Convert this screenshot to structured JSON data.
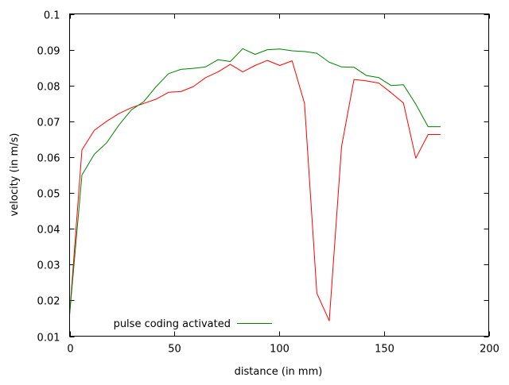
{
  "chart_data": {
    "type": "line",
    "title": "",
    "xlabel": "distance (in mm)",
    "ylabel": "velocity (in m/s)",
    "xlim": [
      0,
      200
    ],
    "ylim": [
      0.01,
      0.1
    ],
    "x_ticks": [
      0,
      50,
      100,
      150,
      200
    ],
    "x_tick_labels": [
      "0",
      "50",
      "100",
      "150",
      "200"
    ],
    "y_ticks": [
      0.01,
      0.02,
      0.03,
      0.04,
      0.05,
      0.06,
      0.07,
      0.08,
      0.09,
      0.1
    ],
    "y_tick_labels": [
      "0.01",
      "0.02",
      "0.03",
      "0.04",
      "0.05",
      "0.06",
      "0.07",
      "0.08",
      "0.09",
      "0.1"
    ],
    "grid": false,
    "legend_position": "bottom-left",
    "series": [
      {
        "name": "pulse coding activated",
        "color": "#008000",
        "x": [
          0,
          5.9,
          11.8,
          17.7,
          23.6,
          29.5,
          35.4,
          41.3,
          47.2,
          53.1,
          59.0,
          64.9,
          70.8,
          76.7,
          82.6,
          88.5,
          94.4,
          100.3,
          106.2,
          112.1,
          118.0,
          123.9,
          129.8,
          135.7,
          141.6,
          147.5,
          153.4,
          159.3,
          165.2,
          171.1,
          177.0
        ],
        "y": [
          0.016,
          0.055,
          0.0608,
          0.064,
          0.069,
          0.0732,
          0.0755,
          0.0797,
          0.0833,
          0.0845,
          0.0848,
          0.0852,
          0.0872,
          0.0867,
          0.0903,
          0.0887,
          0.09,
          0.0902,
          0.0897,
          0.0895,
          0.089,
          0.0865,
          0.0852,
          0.0851,
          0.0828,
          0.0822,
          0.08,
          0.0802,
          0.0748,
          0.0685,
          0.0685
        ]
      },
      {
        "color": "#ff0000",
        "x": [
          0,
          5.9,
          11.8,
          17.7,
          23.6,
          29.5,
          35.4,
          41.3,
          47.2,
          53.1,
          59.0,
          64.9,
          70.8,
          76.7,
          82.6,
          88.5,
          94.4,
          100.3,
          106.2,
          112.1,
          118.0,
          123.9,
          129.8,
          135.7,
          141.6,
          147.5,
          153.4,
          159.3,
          165.2,
          171.1,
          177.0
        ],
        "y": [
          0.016,
          0.062,
          0.0675,
          0.07,
          0.0722,
          0.0738,
          0.075,
          0.0762,
          0.0781,
          0.0783,
          0.0797,
          0.0822,
          0.0838,
          0.0859,
          0.0838,
          0.0856,
          0.087,
          0.0856,
          0.0869,
          0.075,
          0.022,
          0.0143,
          0.063,
          0.0817,
          0.0813,
          0.0807,
          0.078,
          0.0751,
          0.0597,
          0.0663,
          0.0663
        ]
      }
    ]
  }
}
